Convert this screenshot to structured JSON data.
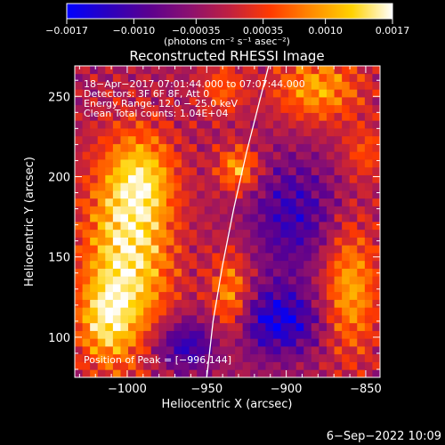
{
  "colorbar": {
    "tick_labels": [
      "−0.0017",
      "−0.0010",
      "−0.00035",
      "0.00035",
      "0.0010",
      "0.0017"
    ],
    "tick_values": [
      -0.0017,
      -0.001,
      -0.00035,
      0.00035,
      0.001,
      0.0017
    ],
    "range": [
      -0.0017,
      0.0017
    ],
    "units_label": "(photons cm⁻² s⁻¹ asec⁻²)",
    "colors": [
      "#0000ff",
      "#2a00c0",
      "#5a0090",
      "#8a1070",
      "#c02040",
      "#ff3a00",
      "#ff8a00",
      "#ffd200",
      "#ffffff"
    ]
  },
  "chart_data": {
    "type": "heatmap",
    "title": "Reconstructed RHESSI Image",
    "xlabel": "Heliocentric X (arcsec)",
    "ylabel": "Heliocentric Y (arcsec)",
    "xlim": [
      -1033,
      -841
    ],
    "ylim": [
      75,
      269
    ],
    "x_ticks": [
      -1000,
      -950,
      -900,
      -850
    ],
    "x_tick_labels": [
      "−1000",
      "−950",
      "−900",
      "−850"
    ],
    "y_ticks": [
      100,
      150,
      200,
      250
    ],
    "y_tick_labels": [
      "100",
      "150",
      "200",
      "250"
    ],
    "peak": [
      -996,
      144
    ],
    "sources": [
      {
        "x": -1000,
        "y": 150,
        "sx": 20,
        "sy": 45,
        "amp": 1.0
      },
      {
        "x": -990,
        "y": 200,
        "sx": 15,
        "sy": 20,
        "amp": 0.55
      },
      {
        "x": -1015,
        "y": 110,
        "sx": 12,
        "sy": 18,
        "amp": 0.55
      },
      {
        "x": -930,
        "y": 205,
        "sx": 9,
        "sy": 10,
        "amp": 0.75
      },
      {
        "x": -935,
        "y": 125,
        "sx": 9,
        "sy": 20,
        "amp": 0.7
      },
      {
        "x": -860,
        "y": 130,
        "sx": 13,
        "sy": 30,
        "amp": 0.75
      },
      {
        "x": -880,
        "y": 255,
        "sx": 20,
        "sy": 15,
        "amp": 0.7
      },
      {
        "x": -940,
        "y": 255,
        "sx": 10,
        "sy": 12,
        "amp": 0.45
      },
      {
        "x": -850,
        "y": 215,
        "sx": 10,
        "sy": 12,
        "amp": 0.4
      },
      {
        "x": -895,
        "y": 175,
        "sx": 20,
        "sy": 25,
        "amp": -0.55
      },
      {
        "x": -905,
        "y": 110,
        "sx": 20,
        "sy": 15,
        "amp": -0.75
      },
      {
        "x": -965,
        "y": 95,
        "sx": 15,
        "sy": 12,
        "amp": -0.65
      }
    ],
    "limb_curve": [
      [
        -950,
        75
      ],
      [
        -946,
        110
      ],
      [
        -940,
        145
      ],
      [
        -933,
        180
      ],
      [
        -925,
        215
      ],
      [
        -916,
        250
      ],
      [
        -911,
        269
      ]
    ]
  },
  "annotations": {
    "line1": "18−Apr−2017 07:01:44.000 to 07:07:44.000",
    "line2": "Detectors: 3F 6F 8F, Att 0",
    "line3": "Energy Range: 12.0 − 25.0 keV",
    "line4": "Clean    Total counts: 1.04E+04",
    "peak_label": "Position of Peak = [−996,144]"
  },
  "footer_timestamp": "6−Sep−2022 10:09"
}
